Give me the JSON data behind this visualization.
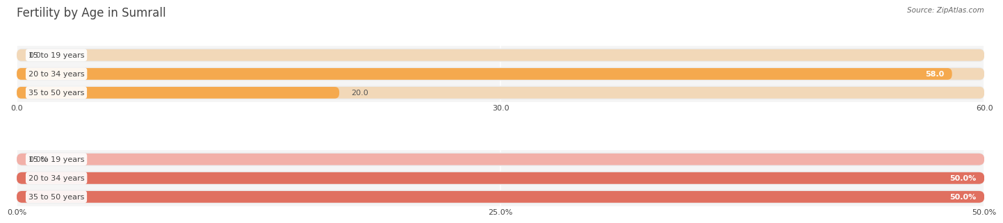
{
  "title": "Fertility by Age in Sumrall",
  "source": "Source: ZipAtlas.com",
  "top_chart": {
    "categories": [
      "15 to 19 years",
      "20 to 34 years",
      "35 to 50 years"
    ],
    "values": [
      0.0,
      58.0,
      20.0
    ],
    "max_val": 60.0,
    "xticks": [
      0.0,
      30.0,
      60.0
    ],
    "xtick_labels": [
      "0.0",
      "30.0",
      "60.0"
    ],
    "bar_color": "#F5A94E",
    "bar_bg_color": "#F2D8B8",
    "value_labels": [
      "0.0",
      "58.0",
      "20.0"
    ],
    "bar_height": 0.72,
    "track_color": "#EBEBEB"
  },
  "bottom_chart": {
    "categories": [
      "15 to 19 years",
      "20 to 34 years",
      "35 to 50 years"
    ],
    "values": [
      0.0,
      50.0,
      50.0
    ],
    "max_val": 50.0,
    "xticks": [
      0.0,
      25.0,
      50.0
    ],
    "xtick_labels": [
      "0.0%",
      "25.0%",
      "50.0%"
    ],
    "bar_color": "#E07060",
    "bar_bg_color": "#F2B0A8",
    "value_labels": [
      "0.0%",
      "50.0%",
      "50.0%"
    ],
    "bar_height": 0.72,
    "track_color": "#EBEBEB"
  },
  "fig_bg_color": "#FFFFFF",
  "plot_bg_color": "#F5F5F5",
  "label_bg_color": "#FFFFFF",
  "label_color": "#444444",
  "title_color": "#444444",
  "source_color": "#666666",
  "value_color_inside": "#FFFFFF",
  "value_color_outside": "#555555",
  "label_fontsize": 8.0,
  "title_fontsize": 12,
  "source_fontsize": 7.5,
  "tick_fontsize": 8.0
}
